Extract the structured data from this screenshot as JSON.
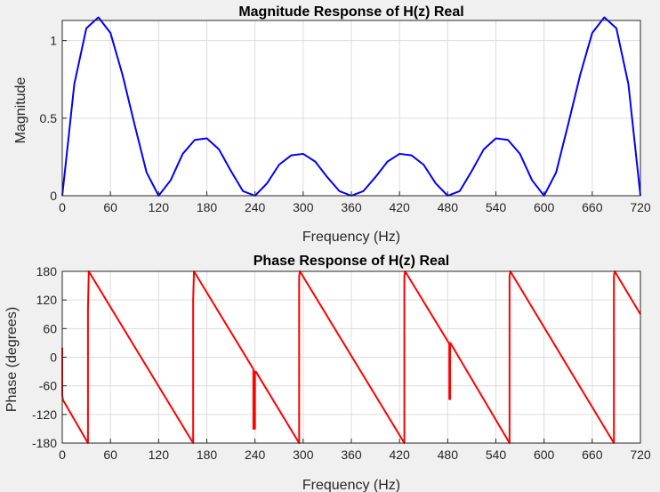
{
  "chart_data": [
    {
      "type": "line",
      "title": "Magnitude Response of H(z) Real",
      "xlabel": "Frequency (Hz)",
      "ylabel": "Magnitude",
      "xlim": [
        0,
        720
      ],
      "ylim": [
        0,
        1.13
      ],
      "grid": true,
      "xticks": [
        0,
        60,
        120,
        180,
        240,
        300,
        360,
        420,
        480,
        540,
        600,
        660,
        720
      ],
      "xtick_labels": [
        "0",
        "60",
        "120",
        "180",
        "240",
        "300",
        "360",
        "420",
        "480",
        "540",
        "600",
        "660",
        "720"
      ],
      "yticks": [
        0,
        0.5,
        1
      ],
      "ytick_labels": [
        "0",
        "0.5",
        "1"
      ],
      "series": [
        {
          "color": "#0000ff",
          "x": [
            0,
            15,
            30,
            45,
            60,
            75,
            90,
            105,
            120,
            135,
            150,
            165,
            180,
            195,
            210,
            225,
            240,
            255,
            270,
            285,
            300,
            315,
            330,
            345,
            360,
            375,
            390,
            405,
            420,
            435,
            450,
            465,
            480,
            495,
            510,
            525,
            540,
            555,
            570,
            585,
            600,
            615,
            630,
            645,
            660,
            675,
            690,
            705,
            720
          ],
          "y": [
            0,
            0.72,
            1.08,
            1.15,
            1.05,
            0.78,
            0.46,
            0.15,
            0,
            0.1,
            0.27,
            0.36,
            0.37,
            0.3,
            0.16,
            0.03,
            0,
            0.08,
            0.2,
            0.26,
            0.27,
            0.22,
            0.12,
            0.03,
            0,
            0.03,
            0.12,
            0.22,
            0.27,
            0.26,
            0.2,
            0.08,
            0,
            0.03,
            0.16,
            0.3,
            0.37,
            0.36,
            0.27,
            0.1,
            0,
            0.15,
            0.46,
            0.78,
            1.05,
            1.15,
            1.08,
            0.72,
            0
          ]
        }
      ]
    },
    {
      "type": "line",
      "title": "Phase Response of H(z) Real",
      "xlabel": "Frequency (Hz)",
      "ylabel": "Phase (degrees)",
      "xlim": [
        0,
        720
      ],
      "ylim": [
        -180,
        180
      ],
      "grid": true,
      "xticks": [
        0,
        60,
        120,
        180,
        240,
        300,
        360,
        420,
        480,
        540,
        600,
        660,
        720
      ],
      "xtick_labels": [
        "0",
        "60",
        "120",
        "180",
        "240",
        "300",
        "360",
        "420",
        "480",
        "540",
        "600",
        "660",
        "720"
      ],
      "yticks": [
        -180,
        -120,
        -60,
        0,
        60,
        120,
        180
      ],
      "ytick_labels": [
        "-180",
        "-120",
        "-60",
        "0",
        "60",
        "120",
        "180"
      ],
      "series": [
        {
          "color": "#ff0000",
          "x": [
            0,
            0,
            1,
            32,
            32,
            33,
            163,
            163,
            164,
            238,
            238,
            240,
            240,
            241,
            295,
            295,
            296,
            426,
            426,
            427,
            482,
            482,
            483,
            483,
            484,
            557,
            557,
            558,
            687,
            687,
            688,
            720
          ],
          "y": [
            20,
            -80,
            -90,
            -180,
            100,
            180,
            -180,
            120,
            180,
            -25,
            -150,
            -150,
            -30,
            -30,
            -180,
            170,
            180,
            -180,
            170,
            180,
            28,
            -88,
            -88,
            30,
            28,
            -180,
            170,
            180,
            -180,
            170,
            180,
            90
          ]
        }
      ]
    }
  ]
}
